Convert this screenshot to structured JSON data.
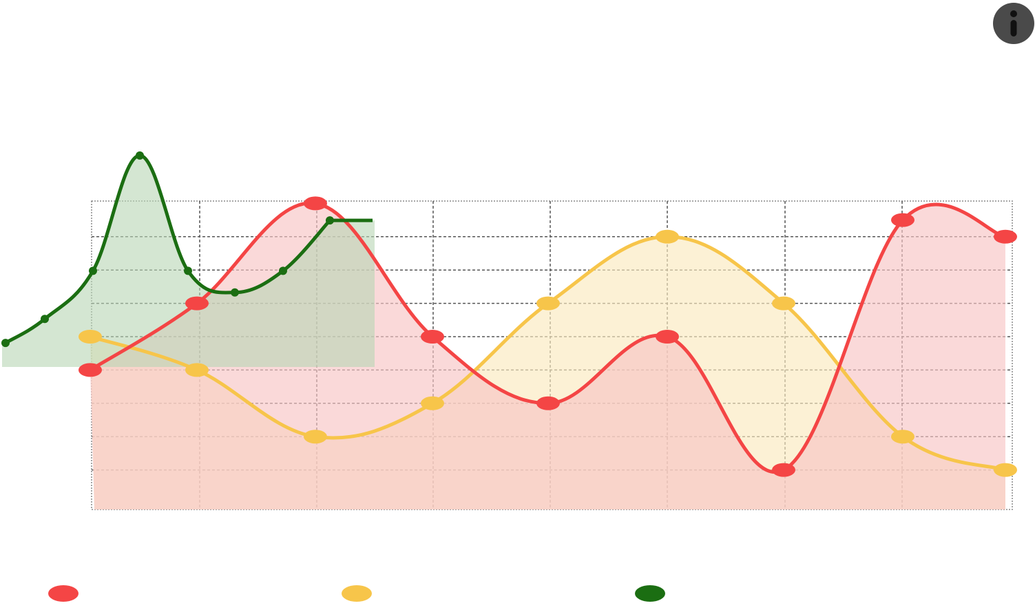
{
  "info_button": {
    "icon": "info-icon",
    "color": "#4a4a4a"
  },
  "chart_data": {
    "type": "area",
    "title": "",
    "xlabel": "",
    "ylabel": "",
    "grid": true,
    "legend_position": "bottom",
    "primary_axis": {
      "x": [
        0,
        1,
        2,
        3,
        4,
        5,
        6,
        7,
        8
      ],
      "ylim": [
        0,
        9
      ]
    },
    "series": [
      {
        "id": "red",
        "color": "#f44545",
        "fill": "#f8c5c5",
        "x": [
          0,
          1,
          2,
          3,
          4,
          5,
          6,
          7,
          8
        ],
        "values": [
          4,
          6,
          9,
          5,
          3,
          5,
          1,
          8.5,
          8
        ]
      },
      {
        "id": "yellow",
        "color": "#f7c54a",
        "fill": "#fbe9bf",
        "x": [
          0,
          1,
          2,
          3,
          4,
          5,
          6,
          7,
          8
        ],
        "values": [
          5,
          4,
          2,
          3,
          6,
          8,
          6,
          2,
          1
        ]
      },
      {
        "id": "green",
        "color": "#1b6e12",
        "fill": "#b7d5b4",
        "x": [
          0,
          1,
          2,
          3,
          4,
          5,
          6,
          7
        ],
        "values": [
          1,
          2,
          4,
          8.8,
          4,
          3.1,
          4,
          6.1
        ]
      }
    ]
  }
}
